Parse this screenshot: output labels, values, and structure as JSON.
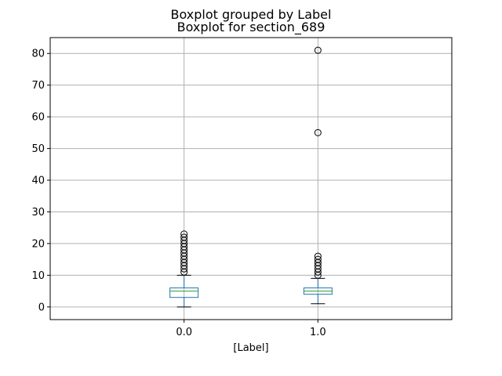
{
  "figure": {
    "suptitle": "Boxplot grouped by Label",
    "title": "Boxplot for section_689"
  },
  "chart_data": {
    "type": "boxplot",
    "title": "Boxplot for section_689",
    "suptitle": "Boxplot grouped by Label",
    "xlabel": "[Label]",
    "ylabel": "",
    "categories": [
      "0.0",
      "1.0"
    ],
    "ylim": [
      -4,
      85
    ],
    "yticks": [
      0,
      10,
      20,
      30,
      40,
      50,
      60,
      70,
      80
    ],
    "grid": true,
    "boxes": [
      {
        "category": "0.0",
        "whisker_low": 0,
        "q1": 3,
        "median": 5,
        "q3": 6,
        "whisker_high": 10,
        "outliers": [
          11,
          12,
          13,
          14,
          15,
          16,
          17,
          18,
          19,
          20,
          21,
          22,
          23
        ]
      },
      {
        "category": "1.0",
        "whisker_low": 1,
        "q1": 4,
        "median": 5,
        "q3": 6,
        "whisker_high": 9,
        "outliers": [
          10,
          11,
          12,
          13,
          14,
          15,
          16,
          55,
          81
        ]
      }
    ],
    "colors": {
      "box": "#1f77b4",
      "median": "#2ca02c",
      "whisker": "#000000",
      "grid": "#b0b0b0",
      "flier": "#000000"
    }
  }
}
